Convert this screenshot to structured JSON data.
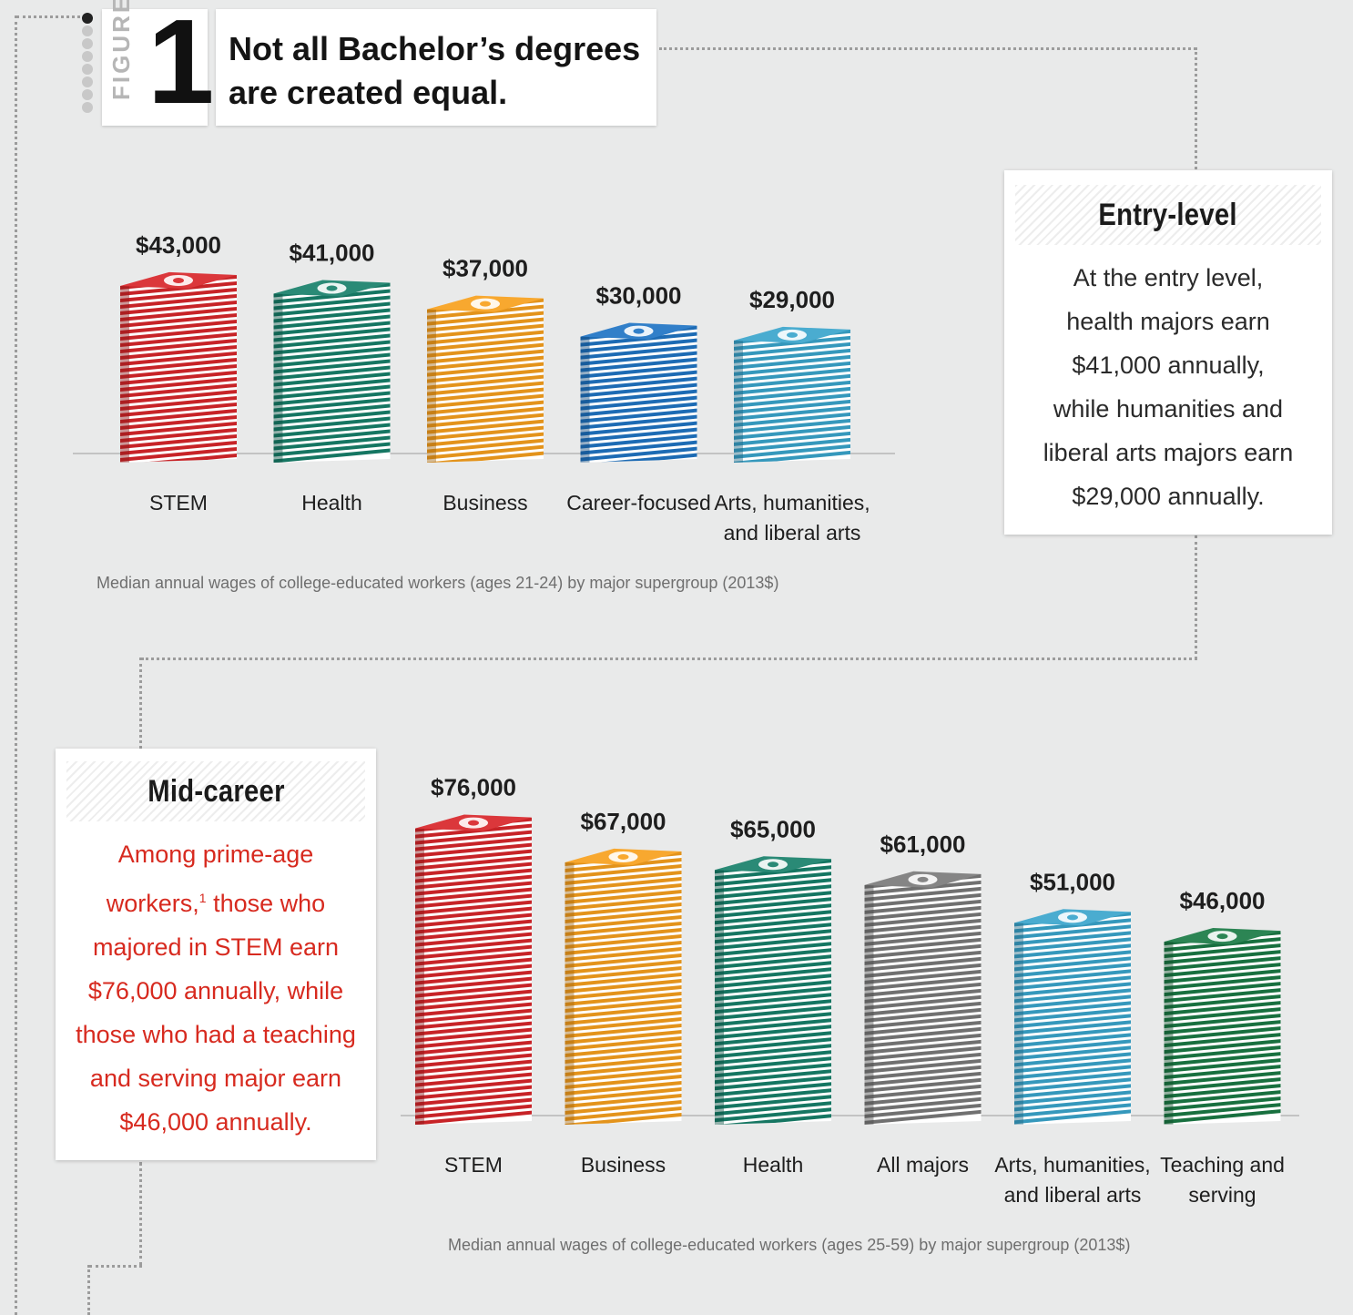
{
  "figure": {
    "label": "FIGURE",
    "number": "1"
  },
  "title": {
    "line1": "Not all Bachelor’s degrees",
    "line2": "are created equal."
  },
  "entry_card": {
    "heading": "Entry-level",
    "lines": [
      "At the entry level,",
      "health majors earn",
      "$41,000 annually,",
      "while humanities and",
      "liberal arts majors earn",
      "$29,000 annually."
    ],
    "text_color": "#2a2a2a"
  },
  "mid_card": {
    "heading": "Mid-career",
    "lines": [
      "Among prime-age",
      "workers,",
      "those who",
      "majored in STEM earn",
      "$76,000 annually, while",
      "those who had a teaching",
      "and serving major earn",
      "$46,000 annually."
    ],
    "footnote": "1",
    "text_color": "#d72a1f"
  },
  "icons": {
    "bill": "dollar-bill-icon"
  },
  "chart_data": [
    {
      "type": "bar",
      "title": "",
      "caption": "Median annual wages of college-educated workers (ages 21-24) by major supergroup (2013$)",
      "categories": [
        "STEM",
        "Health",
        "Business",
        "Career-focused",
        "Arts, humanities, and liberal arts"
      ],
      "category_lines": [
        [
          "STEM"
        ],
        [
          "Health"
        ],
        [
          "Business"
        ],
        [
          "Career-focused"
        ],
        [
          "Arts, humanities,",
          "and liberal arts"
        ]
      ],
      "values": [
        43000,
        41000,
        37000,
        30000,
        29000
      ],
      "value_labels": [
        "$43,000",
        "$41,000",
        "$37,000",
        "$30,000",
        "$29,000"
      ],
      "colors": [
        "#d8262a",
        "#17806a",
        "#f7a01d",
        "#1f74c4",
        "#3aa5cc"
      ],
      "ylim": [
        0,
        45000
      ],
      "xlabel": "",
      "ylabel": "",
      "grid": false,
      "legend": "none"
    },
    {
      "type": "bar",
      "title": "",
      "caption": "Median annual wages of college-educated workers (ages 25-59) by major supergroup (2013$)",
      "categories": [
        "STEM",
        "Business",
        "Health",
        "All majors",
        "Arts, humanities, and liberal arts",
        "Teaching and serving"
      ],
      "category_lines": [
        [
          "STEM"
        ],
        [
          "Business"
        ],
        [
          "Health"
        ],
        [
          "All majors"
        ],
        [
          "Arts, humanities,",
          "and liberal arts"
        ],
        [
          "Teaching and",
          "serving"
        ]
      ],
      "values": [
        76000,
        67000,
        65000,
        61000,
        51000,
        46000
      ],
      "value_labels": [
        "$76,000",
        "$67,000",
        "$65,000",
        "$61,000",
        "$51,000",
        "$46,000"
      ],
      "colors": [
        "#d8262a",
        "#f7a01d",
        "#17806a",
        "#7a7a7a",
        "#3aa5cc",
        "#1a7a45"
      ],
      "ylim": [
        0,
        80000
      ],
      "xlabel": "",
      "ylabel": "",
      "grid": false,
      "legend": "none"
    }
  ]
}
